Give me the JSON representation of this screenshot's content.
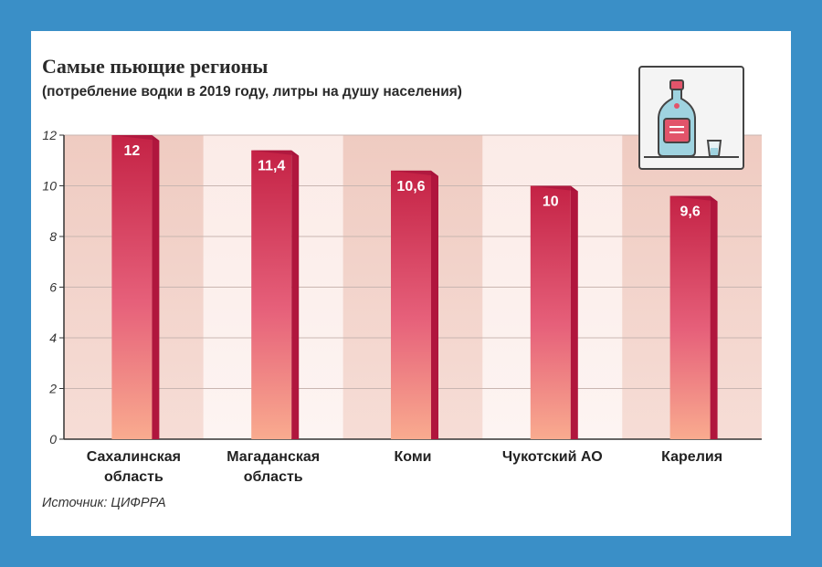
{
  "header": {
    "title": "Самые пьющие регионы",
    "subtitle": "(потребление водки в 2019 году, литры на душу населения)"
  },
  "footer": {
    "source": "Источник: ЦИФРРА"
  },
  "icon": {
    "name": "vodka-bottle-icon",
    "colors": {
      "bottle": "#9fd3e0",
      "label": "#e2546a",
      "frame": "#444444"
    }
  },
  "colors": {
    "bar_top": "#c42245",
    "bar_bottom": "#f8a88e",
    "bar_side": "#b0163d",
    "band_dark": "#f0cfc6",
    "band_light": "#fbeeea",
    "background": "#3a8fc7"
  },
  "chart_data": {
    "type": "bar",
    "categories": [
      [
        "Сахалинская",
        "область"
      ],
      [
        "Магаданская",
        "область"
      ],
      [
        "Коми"
      ],
      [
        "Чукотский АО"
      ],
      [
        "Карелия"
      ]
    ],
    "values": [
      12,
      11.4,
      10.6,
      10,
      9.6
    ],
    "value_labels": [
      "12",
      "11,4",
      "10,6",
      "10",
      "9,6"
    ],
    "ylim": [
      0,
      12
    ],
    "yticks": [
      0,
      2,
      4,
      6,
      8,
      10,
      12
    ],
    "grid": true
  }
}
